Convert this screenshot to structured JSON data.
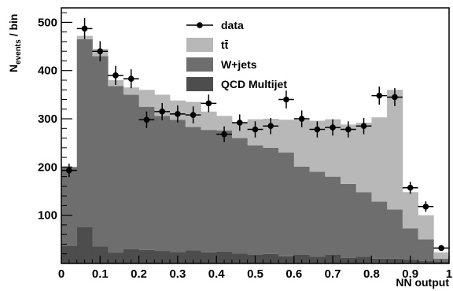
{
  "chart_data": {
    "type": "bar",
    "stacked": true,
    "xlabel": "NN output",
    "ylabel": "N",
    "ylabel_sub": "events",
    "ylabel_suffix": " / bin",
    "xlim": [
      0,
      1
    ],
    "ylim": [
      0,
      530
    ],
    "x_ticks": [
      0,
      0.1,
      0.2,
      0.3,
      0.4,
      0.5,
      0.6,
      0.7,
      0.8,
      0.9,
      1
    ],
    "x_tick_labels": [
      "0",
      "0.1",
      "0.2",
      "0.3",
      "0.4",
      "0.5",
      "0.6",
      "0.7",
      "0.8",
      "0.9",
      "1"
    ],
    "y_ticks": [
      100,
      200,
      300,
      400,
      500
    ],
    "y_tick_labels": [
      "100",
      "200",
      "300",
      "400",
      "500"
    ],
    "bin_edges": [
      0,
      0.04,
      0.08,
      0.12,
      0.16,
      0.2,
      0.24,
      0.28,
      0.32,
      0.36,
      0.4,
      0.44,
      0.48,
      0.52,
      0.56,
      0.6,
      0.64,
      0.68,
      0.72,
      0.76,
      0.8,
      0.84,
      0.88,
      0.92,
      0.96,
      1.0
    ],
    "series": [
      {
        "name": "QCD Multijet",
        "color": "#4d4d4d",
        "values": [
          37,
          75,
          35,
          22,
          30,
          28,
          26,
          24,
          27,
          23,
          25,
          21,
          18,
          20,
          15,
          18,
          14,
          18,
          12,
          14,
          10,
          10,
          8,
          5,
          4
        ]
      },
      {
        "name": "W+jets",
        "color": "#6e6e6e",
        "values": [
          163,
          390,
          395,
          346,
          320,
          297,
          280,
          274,
          256,
          254,
          251,
          239,
          227,
          220,
          215,
          183,
          176,
          162,
          153,
          134,
          118,
          102,
          65,
          45,
          6
        ]
      },
      {
        "name": "tt̄",
        "color": "#b8b8b8",
        "values": [
          0,
          7,
          15,
          12,
          15,
          35,
          44,
          40,
          52,
          38,
          30,
          31,
          54,
          60,
          68,
          97,
          106,
          119,
          123,
          144,
          175,
          248,
          75,
          50,
          13
        ]
      }
    ],
    "data": {
      "name": "data",
      "x": [
        0.02,
        0.06,
        0.1,
        0.14,
        0.18,
        0.22,
        0.26,
        0.3,
        0.34,
        0.38,
        0.42,
        0.46,
        0.5,
        0.54,
        0.58,
        0.62,
        0.66,
        0.7,
        0.74,
        0.78,
        0.82,
        0.86,
        0.9,
        0.94,
        0.98
      ],
      "y": [
        193,
        487,
        440,
        390,
        383,
        298,
        315,
        310,
        308,
        332,
        268,
        292,
        278,
        285,
        340,
        300,
        278,
        282,
        278,
        285,
        348,
        345,
        157,
        118,
        32
      ]
    },
    "legend": [
      "data",
      "tt̄",
      "W+jets",
      "QCD Multijet"
    ],
    "legend_placement": "top-center",
    "grid": false
  }
}
